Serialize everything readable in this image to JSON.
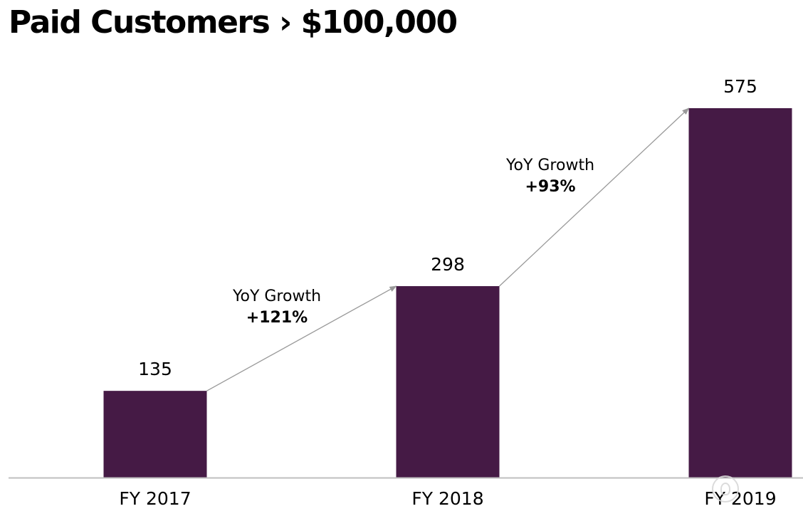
{
  "title": "Paid Customers › $100,000",
  "chart_data": {
    "type": "bar",
    "title": "Paid Customers › $100,000",
    "categories": [
      "FY 2017",
      "FY 2018",
      "FY 2019"
    ],
    "values": [
      135,
      298,
      575
    ],
    "ylim": [
      0,
      575
    ],
    "grid": false,
    "legend": "none",
    "bar_color": "#451a45",
    "axis_color": "#bfbfbf",
    "arrow_color": "#999999",
    "annotations": [
      {
        "label": "YoY Growth",
        "value": "+121%",
        "from": "FY 2017",
        "to": "FY 2018"
      },
      {
        "label": "YoY Growth",
        "value": "+93%",
        "from": "FY 2018",
        "to": "FY 2019"
      }
    ]
  }
}
